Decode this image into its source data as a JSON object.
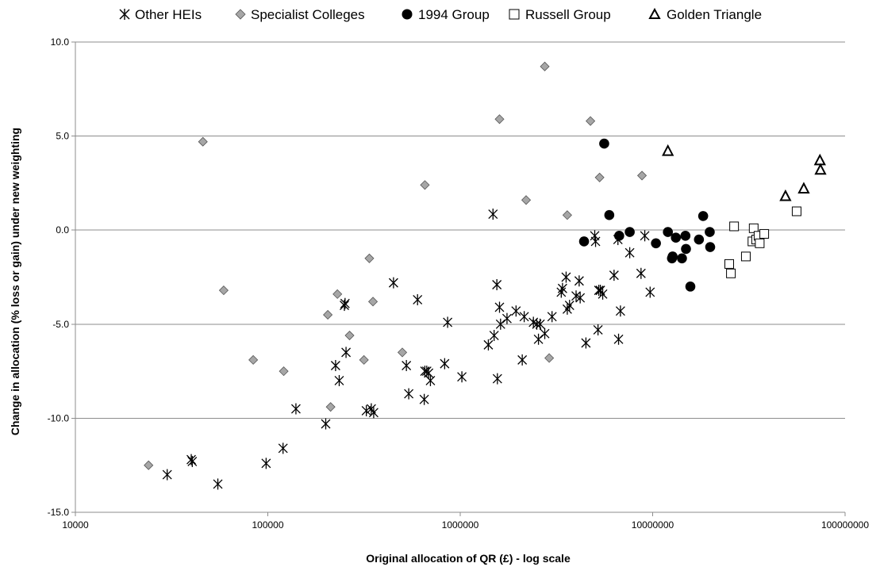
{
  "chart_data": {
    "type": "scatter",
    "xlabel": "Original allocation of QR (£) - log scale",
    "ylabel": "Change in allocation (% loss or gain)  under new weighting",
    "x_scale": "log",
    "xlim": [
      10000,
      100000000
    ],
    "ylim": [
      -15,
      10
    ],
    "x_ticks": [
      "10000",
      "100000",
      "1000000",
      "10000000",
      "100000000"
    ],
    "y_ticks": [
      "10.0",
      "5.0",
      "0.0",
      "-5.0",
      "-10.0",
      "-15.0"
    ],
    "grid": "horizontal",
    "legend_position": "top",
    "series": [
      {
        "name": "Other HEIs",
        "marker": "asterisk",
        "color": "#000000",
        "points": [
          [
            30000,
            -13.0
          ],
          [
            40000,
            -12.2
          ],
          [
            40500,
            -12.3
          ],
          [
            55000,
            -13.5
          ],
          [
            98000,
            -12.4
          ],
          [
            120000,
            -11.6
          ],
          [
            140000,
            -9.5
          ],
          [
            200000,
            -10.3
          ],
          [
            225000,
            -7.2
          ],
          [
            235000,
            -8.0
          ],
          [
            250000,
            -4.0
          ],
          [
            252000,
            -3.9
          ],
          [
            255000,
            -6.5
          ],
          [
            325000,
            -9.6
          ],
          [
            345000,
            -9.5
          ],
          [
            355000,
            -9.7
          ],
          [
            450000,
            -2.8
          ],
          [
            525000,
            -7.2
          ],
          [
            540000,
            -8.7
          ],
          [
            600000,
            -3.7
          ],
          [
            650000,
            -9.0
          ],
          [
            655000,
            -7.5
          ],
          [
            670000,
            -7.5
          ],
          [
            685000,
            -7.6
          ],
          [
            700000,
            -8.0
          ],
          [
            830000,
            -7.1
          ],
          [
            860000,
            -4.9
          ],
          [
            1020000,
            -7.8
          ],
          [
            1400000,
            -6.1
          ],
          [
            1480000,
            0.85
          ],
          [
            1500000,
            -5.6
          ],
          [
            1550000,
            -2.9
          ],
          [
            1560000,
            -7.9
          ],
          [
            1600000,
            -4.1
          ],
          [
            1620000,
            -5.0
          ],
          [
            1750000,
            -4.7
          ],
          [
            1950000,
            -4.3
          ],
          [
            2100000,
            -6.9
          ],
          [
            2150000,
            -4.6
          ],
          [
            2400000,
            -4.9
          ],
          [
            2500000,
            -5.0
          ],
          [
            2550000,
            -5.8
          ],
          [
            2600000,
            -5.0
          ],
          [
            2750000,
            -5.5
          ],
          [
            3000000,
            -4.6
          ],
          [
            3350000,
            -3.3
          ],
          [
            3400000,
            -3.1
          ],
          [
            3550000,
            -2.5
          ],
          [
            3600000,
            -4.2
          ],
          [
            3700000,
            -4.0
          ],
          [
            4000000,
            -3.5
          ],
          [
            4150000,
            -2.7
          ],
          [
            4200000,
            -3.6
          ],
          [
            4500000,
            -6.0
          ],
          [
            5000000,
            -0.3
          ],
          [
            5050000,
            -0.6
          ],
          [
            5200000,
            -5.3
          ],
          [
            5250000,
            -3.2
          ],
          [
            5350000,
            -3.2
          ],
          [
            5500000,
            -3.4
          ],
          [
            6300000,
            -2.4
          ],
          [
            6600000,
            -0.5
          ],
          [
            6650000,
            -5.8
          ],
          [
            6800000,
            -4.3
          ],
          [
            7600000,
            -1.2
          ],
          [
            8700000,
            -2.3
          ],
          [
            9100000,
            -0.3
          ],
          [
            9700000,
            -3.3
          ]
        ]
      },
      {
        "name": "Specialist Colleges",
        "marker": "diamond",
        "color": "#a6a6a6",
        "points": [
          [
            24000,
            -12.5
          ],
          [
            46000,
            4.7
          ],
          [
            59000,
            -3.2
          ],
          [
            84000,
            -6.9
          ],
          [
            121000,
            -7.5
          ],
          [
            205000,
            -4.5
          ],
          [
            212000,
            -9.4
          ],
          [
            230000,
            -3.4
          ],
          [
            266000,
            -5.6
          ],
          [
            316000,
            -6.9
          ],
          [
            337000,
            -1.5
          ],
          [
            352000,
            -3.8
          ],
          [
            500000,
            -6.5
          ],
          [
            655000,
            2.4
          ],
          [
            1600000,
            5.9
          ],
          [
            2200000,
            1.6
          ],
          [
            2750000,
            8.7
          ],
          [
            2900000,
            -6.8
          ],
          [
            3600000,
            0.8
          ],
          [
            4750000,
            5.8
          ],
          [
            5300000,
            2.8
          ],
          [
            8800000,
            2.9
          ]
        ]
      },
      {
        "name": "1994 Group",
        "marker": "circle",
        "color": "#000000",
        "points": [
          [
            4400000,
            -0.6
          ],
          [
            5600000,
            4.6
          ],
          [
            5950000,
            0.8
          ],
          [
            6700000,
            -0.3
          ],
          [
            7600000,
            -0.1
          ],
          [
            10400000,
            -0.7
          ],
          [
            12000000,
            -0.1
          ],
          [
            12600000,
            -1.5
          ],
          [
            12700000,
            -1.4
          ],
          [
            13200000,
            -0.4
          ],
          [
            14200000,
            -1.5
          ],
          [
            14800000,
            -0.3
          ],
          [
            14900000,
            -1.0
          ],
          [
            15700000,
            -3.0
          ],
          [
            17400000,
            -0.5
          ],
          [
            18300000,
            0.75
          ],
          [
            19800000,
            -0.1
          ],
          [
            19900000,
            -0.9
          ]
        ]
      },
      {
        "name": "Russell Group",
        "marker": "square",
        "color": "#000000",
        "points": [
          [
            25000000,
            -1.8
          ],
          [
            25500000,
            -2.3
          ],
          [
            26500000,
            0.2
          ],
          [
            30500000,
            -1.4
          ],
          [
            33000000,
            -0.6
          ],
          [
            33500000,
            0.1
          ],
          [
            34500000,
            -0.5
          ],
          [
            35500000,
            -0.3
          ],
          [
            36000000,
            -0.7
          ],
          [
            38000000,
            -0.2
          ],
          [
            56000000,
            1.0
          ]
        ]
      },
      {
        "name": "Golden Triangle",
        "marker": "triangle",
        "color": "#000000",
        "points": [
          [
            12000000,
            4.2
          ],
          [
            49000000,
            1.8
          ],
          [
            61000000,
            2.2
          ],
          [
            74000000,
            3.7
          ],
          [
            74500000,
            3.2
          ]
        ]
      }
    ]
  }
}
